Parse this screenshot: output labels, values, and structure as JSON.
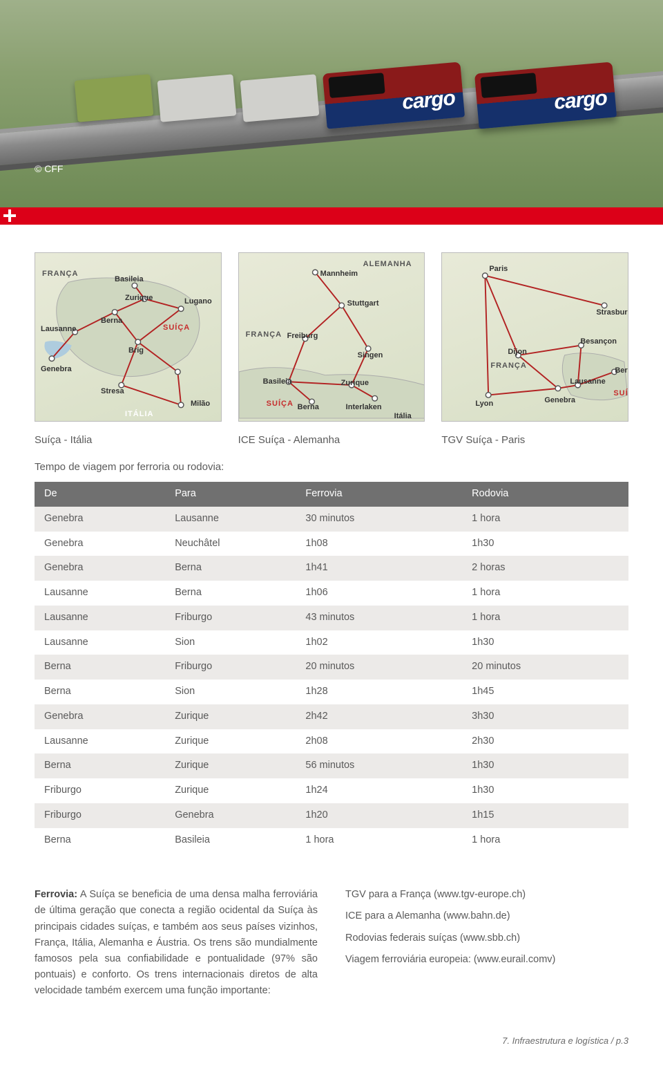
{
  "hero": {
    "credit": "© CFF",
    "wagon_label": "cargo",
    "colors": {
      "loco_top": "#8a1a1a",
      "loco_bottom": "#15306b",
      "redbar": "#dc0018"
    }
  },
  "maps": {
    "caption_1": "Suíça - Itália",
    "caption_2": "ICE Suíça - Alemanha",
    "caption_3": "TGV Suíça - Paris",
    "map1_labels": {
      "franca": "FRANÇA",
      "suica": "SUÍÇA",
      "italia": "ITÁLIA",
      "basileia": "Basileia",
      "zurique": "Zurique",
      "berna": "Berna",
      "lausanne": "Lausanne",
      "brig": "Brig",
      "lugano": "Lugano",
      "genebra": "Genebra",
      "stresa": "Stresa",
      "milao": "Milão"
    },
    "map2_labels": {
      "alemanha": "ALEMANHA",
      "franca": "FRANÇA",
      "suica": "SUÍÇA",
      "italia": "Itália",
      "mannheim": "Mannheim",
      "stuttgart": "Stuttgart",
      "freiburg": "Freiburg",
      "singen": "Singen",
      "basileia": "Basileia",
      "zurique": "Zurique",
      "berna": "Berna",
      "interlaken": "Interlaken"
    },
    "map3_labels": {
      "franca": "FRANÇA",
      "suica": "SUÍÇA",
      "paris": "Paris",
      "strasburgo": "Strasburgo",
      "dijon": "Dijon",
      "besancon": "Besançon",
      "lyon": "Lyon",
      "lausanne": "Lausanne",
      "genebra": "Genebra",
      "berna": "Berna"
    },
    "line_color": "#b22222",
    "dot_fill": "#ffffff",
    "dot_stroke": "#444444"
  },
  "table": {
    "intro": "Tempo de viagem por ferroria ou rodovia:",
    "columns": [
      "De",
      "Para",
      "Ferrovia",
      "Rodovia"
    ],
    "rows": [
      [
        "Genebra",
        "Lausanne",
        "30 minutos",
        "1 hora"
      ],
      [
        "Genebra",
        "Neuchâtel",
        "1h08",
        "1h30"
      ],
      [
        "Genebra",
        "Berna",
        "1h41",
        "2 horas"
      ],
      [
        "Lausanne",
        "Berna",
        "1h06",
        "1 hora"
      ],
      [
        "Lausanne",
        "Friburgo",
        "43 minutos",
        "1 hora"
      ],
      [
        "Lausanne",
        "Sion",
        "1h02",
        "1h30"
      ],
      [
        "Berna",
        "Friburgo",
        "20 minutos",
        "20 minutos"
      ],
      [
        "Berna",
        "Sion",
        "1h28",
        "1h45"
      ],
      [
        "Genebra",
        "Zurique",
        "2h42",
        "3h30"
      ],
      [
        "Lausanne",
        "Zurique",
        "2h08",
        "2h30"
      ],
      [
        "Berna",
        "Zurique",
        "56 minutos",
        "1h30"
      ],
      [
        "Friburgo",
        "Zurique",
        "1h24",
        "1h30"
      ],
      [
        "Friburgo",
        "Genebra",
        "1h20",
        "1h15"
      ],
      [
        "Berna",
        "Basileia",
        "1 hora",
        "1 hora"
      ]
    ],
    "header_bg": "#707070",
    "row_odd_bg": "#eceae8",
    "row_even_bg": "#ffffff"
  },
  "paragraph": {
    "lead": "Ferrovia:",
    "body": " A Suíça se beneficia de uma densa malha ferroviária de última geração que conecta a região ocidental da Suíça às principais cidades suíças, e também aos seus países vizinhos, França, Itália, Alemanha e Áustria. Os trens são mundialmente famosos pela sua confiabilidade e pontualidade (97% são pontuais) e conforto. Os trens internacionais diretos de alta velocidade também exercem uma função importante:"
  },
  "links": {
    "l1": "TGV para a França (www.tgv-europe.ch)",
    "l2": "ICE  para a Alemanha (www.bahn.de)",
    "l3": "Rodovias federais suíças (www.sbb.ch)",
    "l4": "Viagem ferroviária europeia: (www.eurail.comv)"
  },
  "footer": "7. Infraestrutura e logística / p.3"
}
